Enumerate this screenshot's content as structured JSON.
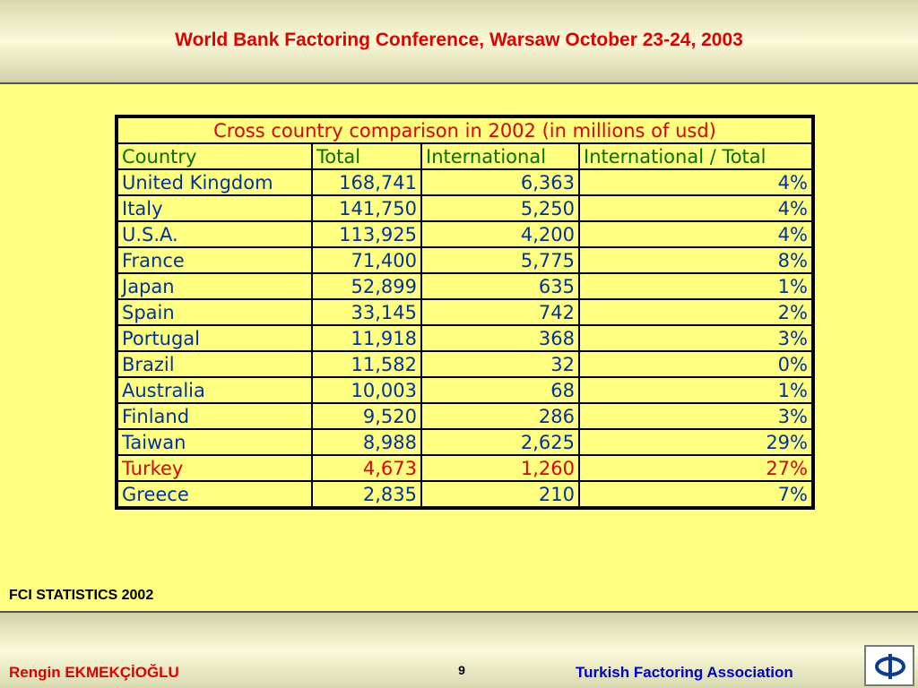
{
  "header": {
    "title": "World Bank Factoring  Conference, Warsaw October 23-24, 2003"
  },
  "table": {
    "caption": "Cross country comparison in 2002 (in millions of usd)",
    "columns": [
      "Country",
      "Total",
      "International",
      "International / Total"
    ],
    "rows": [
      [
        "United Kingdom",
        "168,741",
        "6,363",
        "4%"
      ],
      [
        "Italy",
        "141,750",
        "5,250",
        "4%"
      ],
      [
        "U.S.A.",
        "113,925",
        "4,200",
        "4%"
      ],
      [
        "France",
        "71,400",
        "5,775",
        "8%"
      ],
      [
        "Japan",
        "52,899",
        "635",
        "1%"
      ],
      [
        "Spain",
        "33,145",
        "742",
        "2%"
      ],
      [
        "Portugal",
        "11,918",
        "368",
        "3%"
      ],
      [
        "Brazil",
        "11,582",
        "32",
        "0%"
      ],
      [
        "Australia",
        "10,003",
        "68",
        "1%"
      ],
      [
        "Finland",
        "9,520",
        "286",
        "3%"
      ],
      [
        "Taiwan",
        "8,988",
        "2,625",
        "29%"
      ],
      [
        "Turkey",
        "4,673",
        "1,260",
        "27%"
      ],
      [
        "Greece",
        "2,835",
        "210",
        "7%"
      ]
    ],
    "highlight_row_index": 11,
    "highlight_color": "#e00000"
  },
  "source": "FCI  STATISTICS 2002",
  "footer": {
    "author": "Rengin EKMEKÇİOĞLU",
    "page": "9",
    "org": "Turkish Factoring Association",
    "logo_icon": "phi-logo-icon"
  },
  "colors": {
    "background": "#ffff80",
    "title": "#e00000",
    "cell_text": "#003399",
    "header_text": "#007000"
  }
}
